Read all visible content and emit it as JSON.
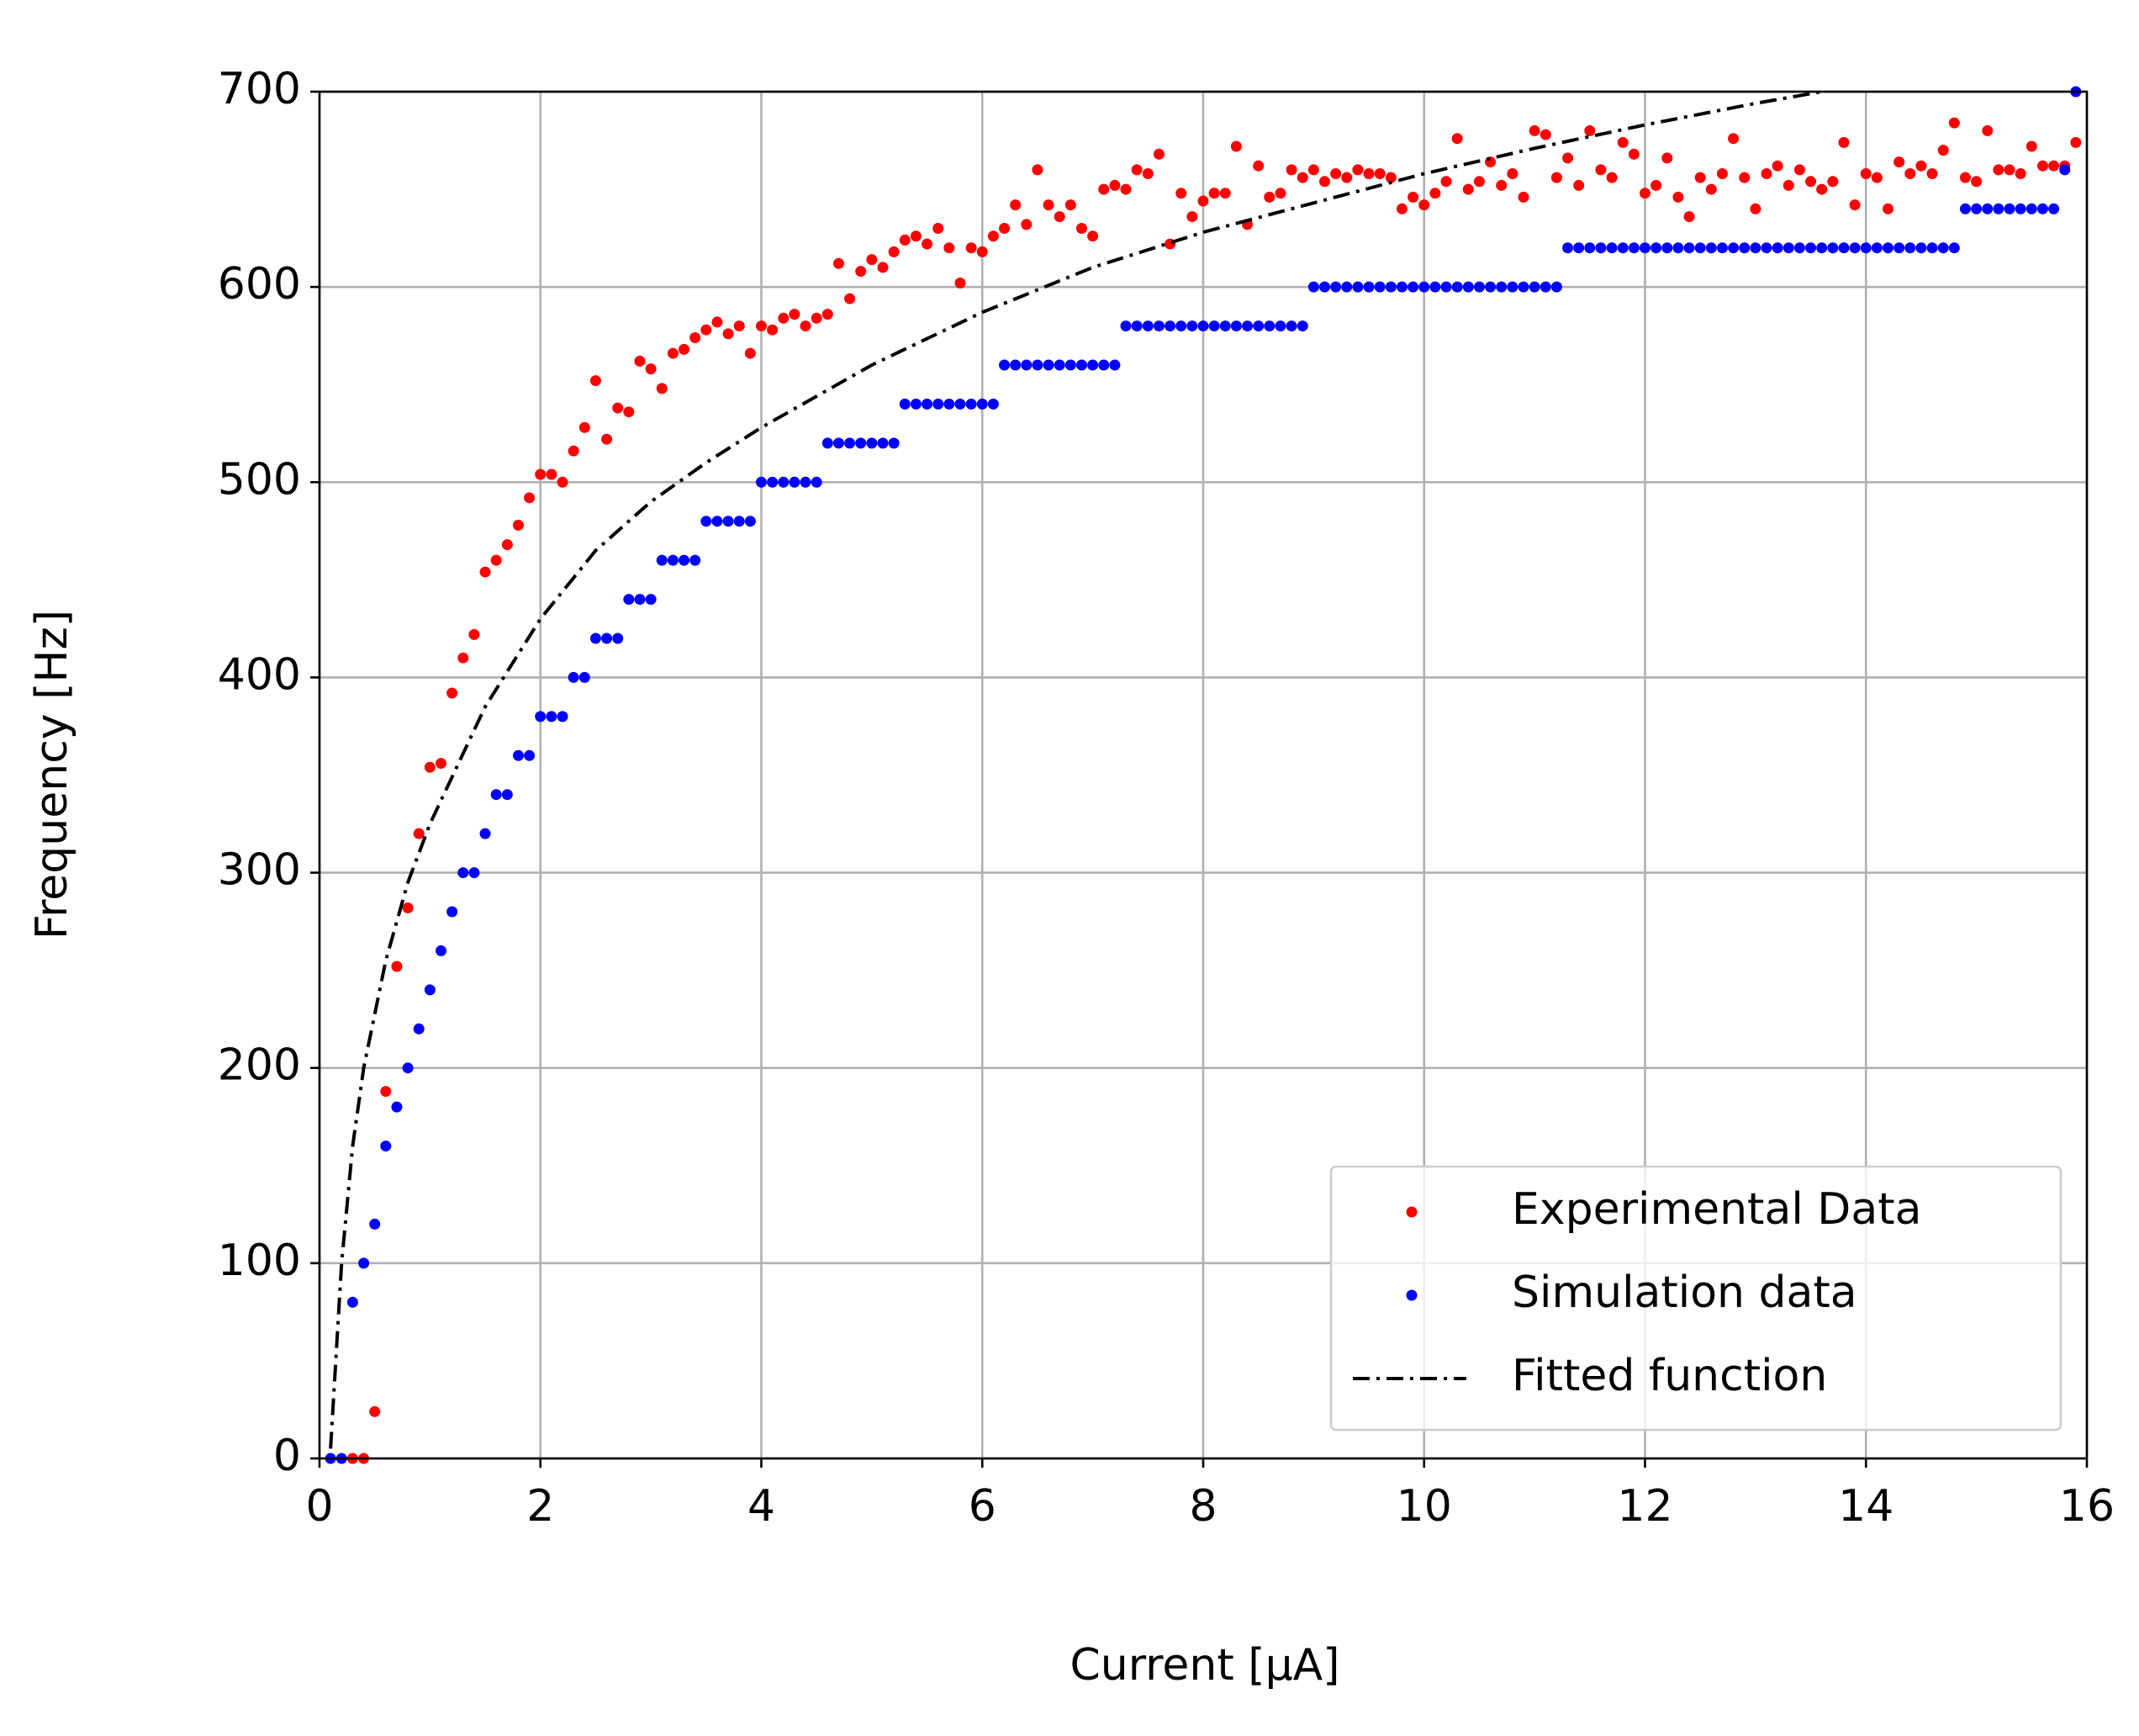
{
  "chart_data": {
    "type": "scatter",
    "xlabel": "Current [µA]",
    "ylabel": "Frequency [Hz]",
    "xlim": [
      0,
      16
    ],
    "ylim": [
      0,
      700
    ],
    "xticks": [
      0,
      2,
      4,
      6,
      8,
      10,
      12,
      14,
      16
    ],
    "yticks": [
      0,
      100,
      200,
      300,
      400,
      500,
      600,
      700
    ],
    "grid": true,
    "legend": "lower right",
    "series": [
      {
        "name": "Experimental Data",
        "color": "#ff0000",
        "marker": "dot",
        "x": [
          0.3,
          0.4,
          0.5,
          0.6,
          0.7,
          0.8,
          0.9,
          1.0,
          1.1,
          1.2,
          1.3,
          1.4,
          1.5,
          1.6,
          1.7,
          1.8,
          1.9,
          2.0,
          2.1,
          2.2,
          2.3,
          2.4,
          2.5,
          2.6,
          2.7,
          2.8,
          2.9,
          3.0,
          3.1,
          3.2,
          3.3,
          3.4,
          3.5,
          3.6,
          3.7,
          3.8,
          3.9,
          4.0,
          4.1,
          4.2,
          4.3,
          4.4,
          4.5,
          4.6,
          4.7,
          4.8,
          4.9,
          5.0,
          5.1,
          5.2,
          5.3,
          5.4,
          5.5,
          5.6,
          5.7,
          5.8,
          5.9,
          6.0,
          6.1,
          6.2,
          6.3,
          6.4,
          6.5,
          6.6,
          6.7,
          6.8,
          6.9,
          7.0,
          7.1,
          7.2,
          7.3,
          7.4,
          7.5,
          7.6,
          7.7,
          7.8,
          7.9,
          8.0,
          8.1,
          8.2,
          8.3,
          8.4,
          8.5,
          8.6,
          8.7,
          8.8,
          8.9,
          9.0,
          9.1,
          9.2,
          9.3,
          9.4,
          9.5,
          9.6,
          9.7,
          9.8,
          9.9,
          10.0,
          10.1,
          10.2,
          10.3,
          10.4,
          10.5,
          10.6,
          10.7,
          10.8,
          10.9,
          11.0,
          11.1,
          11.2,
          11.3,
          11.4,
          11.5,
          11.6,
          11.7,
          11.8,
          11.9,
          12.0,
          12.1,
          12.2,
          12.3,
          12.4,
          12.5,
          12.6,
          12.7,
          12.8,
          12.9,
          13.0,
          13.1,
          13.2,
          13.3,
          13.4,
          13.5,
          13.6,
          13.7,
          13.8,
          13.9,
          14.0,
          14.1,
          14.2,
          14.3,
          14.4,
          14.5,
          14.6,
          14.7,
          14.8,
          14.9,
          15.0,
          15.1,
          15.2,
          15.3,
          15.4,
          15.5,
          15.6,
          15.7,
          15.8,
          15.9
        ],
        "values": [
          0,
          0,
          24,
          188,
          252,
          282,
          320,
          354,
          356,
          392,
          410,
          422,
          454,
          460,
          468,
          478,
          492,
          504,
          504,
          500,
          516,
          528,
          552,
          522,
          538,
          536,
          562,
          558,
          548,
          566,
          568,
          574,
          578,
          582,
          576,
          580,
          566,
          580,
          578,
          584,
          586,
          580,
          584,
          586,
          612,
          594,
          608,
          614,
          610,
          618,
          624,
          626,
          622,
          630,
          620,
          602,
          620,
          618,
          626,
          630,
          642,
          632,
          660,
          642,
          636,
          642,
          630,
          626,
          650,
          652,
          650,
          660,
          658,
          668,
          622,
          648,
          636,
          644,
          648,
          648,
          672,
          632,
          662,
          646,
          648,
          660,
          656,
          660,
          654,
          658,
          656,
          660,
          658,
          658,
          656,
          640,
          646,
          642,
          648,
          654,
          676,
          650,
          654,
          664,
          652,
          658,
          646,
          680,
          678,
          656,
          666,
          652,
          680,
          660,
          656,
          674,
          668,
          648,
          652,
          666,
          646,
          636,
          656,
          650,
          658,
          676,
          656,
          640,
          658,
          662,
          652,
          660,
          654,
          650,
          654,
          674,
          642,
          658,
          656,
          640,
          664,
          658,
          662,
          658,
          670,
          684,
          656,
          654,
          680,
          660,
          660,
          658,
          672,
          662,
          662,
          662,
          674
        ]
      },
      {
        "name": "Simulation data",
        "color": "#0000ff",
        "marker": "dot",
        "x": [
          0.1,
          0.2,
          0.3,
          0.4,
          0.5,
          0.6,
          0.7,
          0.8,
          0.9,
          1.0,
          1.1,
          1.2,
          1.3,
          1.4,
          1.5,
          1.6,
          1.7,
          1.8,
          1.9,
          2.0,
          2.1,
          2.2,
          2.3,
          2.4,
          2.5,
          2.6,
          2.7,
          2.8,
          2.9,
          3.0,
          3.1,
          3.2,
          3.3,
          3.4,
          3.5,
          3.6,
          3.7,
          3.8,
          3.9,
          4.0,
          4.1,
          4.2,
          4.3,
          4.4,
          4.5,
          4.6,
          4.7,
          4.8,
          4.9,
          5.0,
          5.1,
          5.2,
          5.3,
          5.4,
          5.5,
          5.6,
          5.7,
          5.8,
          5.9,
          6.0,
          6.1,
          6.2,
          6.3,
          6.4,
          6.5,
          6.6,
          6.7,
          6.8,
          6.9,
          7.0,
          7.1,
          7.2,
          7.3,
          7.4,
          7.5,
          7.6,
          7.7,
          7.8,
          7.9,
          8.0,
          8.1,
          8.2,
          8.3,
          8.4,
          8.5,
          8.6,
          8.7,
          8.8,
          8.9,
          9.0,
          9.1,
          9.2,
          9.3,
          9.4,
          9.5,
          9.6,
          9.7,
          9.8,
          9.9,
          10.0,
          10.1,
          10.2,
          10.3,
          10.4,
          10.5,
          10.6,
          10.7,
          10.8,
          10.9,
          11.0,
          11.1,
          11.2,
          11.3,
          11.4,
          11.5,
          11.6,
          11.7,
          11.8,
          11.9,
          12.0,
          12.1,
          12.2,
          12.3,
          12.4,
          12.5,
          12.6,
          12.7,
          12.8,
          12.9,
          13.0,
          13.1,
          13.2,
          13.3,
          13.4,
          13.5,
          13.6,
          13.7,
          13.8,
          13.9,
          14.0,
          14.1,
          14.2,
          14.3,
          14.4,
          14.5,
          14.6,
          14.7,
          14.8,
          14.9,
          15.0,
          15.1,
          15.2,
          15.3,
          15.4,
          15.5,
          15.6,
          15.7,
          15.8,
          15.9
        ],
        "values": [
          0,
          0,
          80,
          100,
          120,
          160,
          180,
          200,
          220,
          240,
          260,
          280,
          300,
          300,
          320,
          340,
          340,
          360,
          360,
          380,
          380,
          380,
          400,
          400,
          420,
          420,
          420,
          440,
          440,
          440,
          460,
          460,
          460,
          460,
          480,
          480,
          480,
          480,
          480,
          500,
          500,
          500,
          500,
          500,
          500,
          520,
          520,
          520,
          520,
          520,
          520,
          520,
          540,
          540,
          540,
          540,
          540,
          540,
          540,
          540,
          540,
          560,
          560,
          560,
          560,
          560,
          560,
          560,
          560,
          560,
          560,
          560,
          580,
          580,
          580,
          580,
          580,
          580,
          580,
          580,
          580,
          580,
          580,
          580,
          580,
          580,
          580,
          580,
          580,
          600,
          600,
          600,
          600,
          600,
          600,
          600,
          600,
          600,
          600,
          600,
          600,
          600,
          600,
          600,
          600,
          600,
          600,
          600,
          600,
          600,
          600,
          600,
          620,
          620,
          620,
          620,
          620,
          620,
          620,
          620,
          620,
          620,
          620,
          620,
          620,
          620,
          620,
          620,
          620,
          620,
          620,
          620,
          620,
          620,
          620,
          620,
          620,
          620,
          620,
          620,
          620,
          620,
          620,
          620,
          620,
          620,
          620,
          620,
          640,
          640,
          640,
          640,
          640,
          640,
          640,
          640,
          640,
          660,
          700
        ]
      },
      {
        "name": "Fitted function",
        "color": "#000000",
        "linestyle": "dashdot",
        "x": [
          0.1,
          0.2,
          0.3,
          0.4,
          0.6,
          0.8,
          1.0,
          1.5,
          2.0,
          2.5,
          3.0,
          3.5,
          4.0,
          5.0,
          6.0,
          7.0,
          8.0,
          9.0,
          10.0,
          11.0,
          12.0,
          13.0,
          13.6
        ],
        "values": [
          5,
          100,
          160,
          200,
          255,
          295,
          325,
          385,
          430,
          465,
          490,
          510,
          528,
          560,
          587,
          610,
          628,
          643,
          658,
          671,
          683,
          694,
          700
        ]
      }
    ]
  }
}
